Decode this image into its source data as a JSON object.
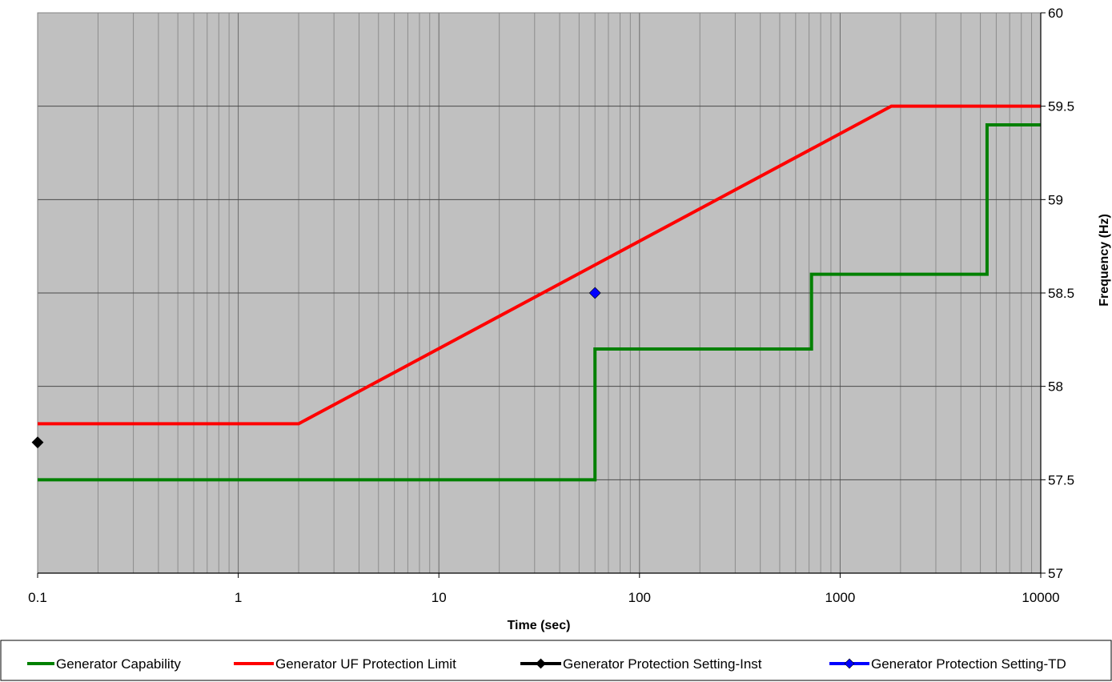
{
  "chart_data": {
    "type": "line",
    "title": "",
    "xlabel": "Time (sec)",
    "ylabel": "Frequency (Hz)",
    "x_scale": "log",
    "xlim": [
      0.1,
      10000
    ],
    "ylim": [
      57,
      60
    ],
    "x_tick_labels": [
      "0.1",
      "1",
      "10",
      "100",
      "1000",
      "10000"
    ],
    "y_tick_labels": [
      "57",
      "57.5",
      "58",
      "58.5",
      "59",
      "59.5",
      "60"
    ],
    "y_axis_side": "right",
    "grid": true,
    "minor_grid": true,
    "plot_background": "#c0c0c0",
    "legend_position": "bottom",
    "series": [
      {
        "name": "Generator Capability",
        "color": "#008000",
        "marker": "none",
        "x": [
          0.1,
          60,
          60,
          720,
          720,
          5400,
          5400,
          10000
        ],
        "y": [
          57.5,
          57.5,
          58.2,
          58.2,
          58.6,
          58.6,
          59.4,
          59.4
        ]
      },
      {
        "name": "Generator UF Protection Limit",
        "color": "#ff0000",
        "marker": "none",
        "x": [
          0.1,
          2,
          1800,
          10000
        ],
        "y": [
          57.8,
          57.8,
          59.5,
          59.5
        ]
      },
      {
        "name": "Generator Protection Setting-Inst",
        "color": "#000000",
        "marker": "diamond",
        "x": [
          0.1
        ],
        "y": [
          57.7
        ]
      },
      {
        "name": "Generator Protection Setting-TD",
        "color": "#0000ff",
        "marker": "diamond",
        "x": [
          60
        ],
        "y": [
          58.5
        ]
      }
    ]
  }
}
